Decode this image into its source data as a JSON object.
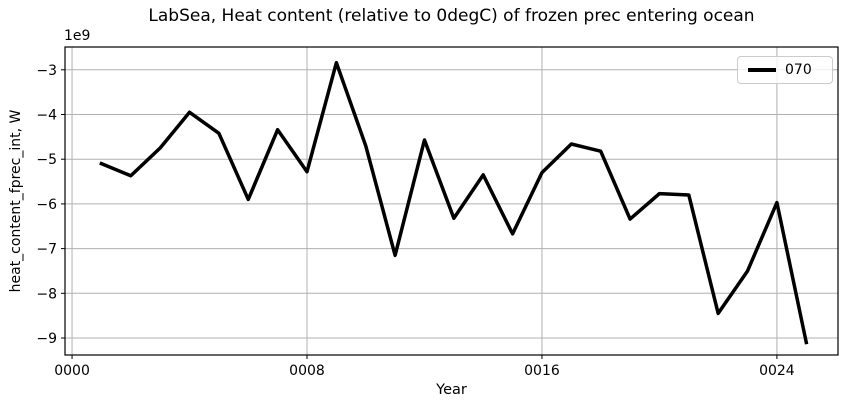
{
  "chart_data": {
    "type": "line",
    "title": "LabSea, Heat content (relative to 0degC) of frozen prec entering ocean",
    "xlabel": "Year",
    "ylabel": "heat_content_fprec_int, W",
    "y_offset_text": "1e9",
    "y_unit_note": "values are in units of 1e9 W (axis multiplier 1e9)",
    "grid": true,
    "legend_position": "upper right",
    "xlim": [
      -0.24,
      26.08
    ],
    "ylim": [
      -9.38,
      -2.49
    ],
    "x_ticks": [
      0,
      8,
      16,
      24
    ],
    "x_tick_labels": [
      "0000",
      "0008",
      "0016",
      "0024"
    ],
    "y_ticks": [
      -3,
      -4,
      -5,
      -6,
      -7,
      -8,
      -9
    ],
    "y_tick_labels": [
      "−3",
      "−4",
      "−5",
      "−6",
      "−7",
      "−8",
      "−9"
    ],
    "x": [
      1,
      2,
      3,
      4,
      5,
      6,
      7,
      8,
      9,
      10,
      11,
      12,
      13,
      14,
      15,
      16,
      17,
      18,
      19,
      20,
      21,
      22,
      23,
      24,
      25
    ],
    "series": [
      {
        "name": "070",
        "color": "#000000",
        "linewidth": 3.5,
        "values": [
          -5.1,
          -5.37,
          -4.75,
          -3.95,
          -4.42,
          -5.9,
          -4.34,
          -5.28,
          -2.84,
          -4.7,
          -7.15,
          -4.57,
          -6.32,
          -5.35,
          -6.67,
          -5.3,
          -4.66,
          -4.82,
          -6.34,
          -5.77,
          -5.8,
          -8.45,
          -7.5,
          -5.97,
          -9.1
        ]
      }
    ],
    "colors": {
      "line": "#000000",
      "grid": "#b0b0b0",
      "spine": "#000000",
      "legend_border": "#cccccc",
      "background": "#ffffff"
    }
  }
}
